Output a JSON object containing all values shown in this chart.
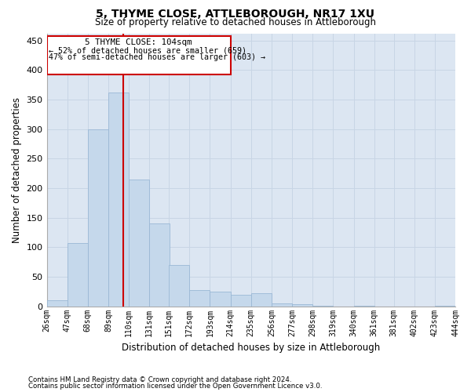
{
  "title1": "5, THYME CLOSE, ATTLEBOROUGH, NR17 1XU",
  "title2": "Size of property relative to detached houses in Attleborough",
  "xlabel": "Distribution of detached houses by size in Attleborough",
  "ylabel": "Number of detached properties",
  "footnote1": "Contains HM Land Registry data © Crown copyright and database right 2024.",
  "footnote2": "Contains public sector information licensed under the Open Government Licence v3.0.",
  "annotation_line1": "5 THYME CLOSE: 104sqm",
  "annotation_line2": "← 52% of detached houses are smaller (659)",
  "annotation_line3": "47% of semi-detached houses are larger (603) →",
  "bar_color": "#c5d8eb",
  "bar_edge_color": "#9ab8d5",
  "grid_color": "#c8d5e5",
  "bg_color": "#dce6f2",
  "property_line_color": "#cc0000",
  "bins": [
    26,
    47,
    68,
    89,
    110,
    131,
    151,
    172,
    193,
    214,
    235,
    256,
    277,
    298,
    319,
    340,
    361,
    381,
    402,
    423,
    444
  ],
  "counts": [
    10,
    107,
    300,
    362,
    215,
    140,
    70,
    27,
    25,
    20,
    22,
    5,
    3,
    1,
    0,
    1,
    0,
    0,
    0,
    1
  ],
  "property_size": 104,
  "ylim": [
    0,
    462
  ],
  "yticks": [
    0,
    50,
    100,
    150,
    200,
    250,
    300,
    350,
    400,
    450
  ]
}
